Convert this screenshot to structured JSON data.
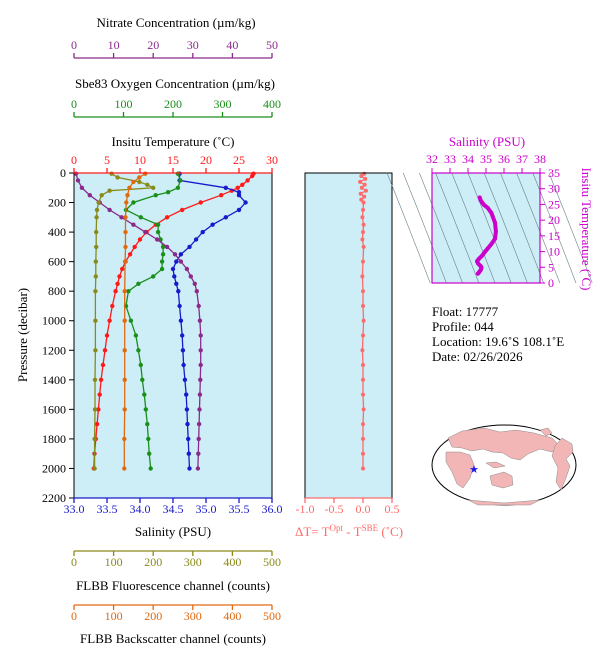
{
  "colors": {
    "nitrate": "#8b2a8b",
    "oxygen": "#1a8f1a",
    "temperature": "#ff1a1a",
    "salinity": "#1a1acc",
    "fluorescence": "#8a8a1a",
    "backscatter": "#e06a10",
    "delta_t": "#ff6a6a",
    "ts_accent": "#cc00cc",
    "ts_trace": "#cc00cc",
    "plot_bg": "#cdeef7",
    "land": "#f2b6b6",
    "ocean": "#ffffff",
    "float_marker": "#1a1aee"
  },
  "info": {
    "float": "Float:  17777",
    "profile": "Profile:  044",
    "location": "Location:  19.6˚S  108.1˚E",
    "date": "Date:  02/26/2026"
  },
  "chart_data": [
    {
      "type": "line",
      "name": "profile-panel",
      "y_axis": {
        "label": "Pressure (decibar)",
        "range": [
          0,
          2200
        ],
        "ticks": [
          0,
          200,
          400,
          600,
          800,
          1000,
          1200,
          1400,
          1600,
          1800,
          2000,
          2200
        ],
        "inverted": true
      },
      "axes": {
        "nitrate": {
          "label": "Nitrate Concentration (µm/kg)",
          "range": [
            0,
            50
          ],
          "ticks": [
            0,
            10,
            20,
            30,
            40,
            50
          ]
        },
        "oxygen": {
          "label": "Sbe83 Oxygen Concentration (µm/kg)",
          "range": [
            0,
            400
          ],
          "ticks": [
            0,
            100,
            200,
            300,
            400
          ]
        },
        "temperature": {
          "label": "Insitu Temperature (˚C)",
          "range": [
            0,
            30
          ],
          "ticks": [
            0,
            5,
            10,
            15,
            20,
            25,
            30
          ]
        },
        "salinity": {
          "label": "Salinity (PSU)",
          "range": [
            33,
            36
          ],
          "ticks": [
            "33.0",
            "33.5",
            "34.0",
            "34.5",
            "35.0",
            "35.5",
            "36.0"
          ]
        },
        "fluorescence": {
          "label": "FLBB Fluorescence channel (counts)",
          "range": [
            0,
            500
          ],
          "ticks": [
            0,
            100,
            200,
            300,
            400,
            500
          ]
        },
        "backscatter": {
          "label": "FLBB Backscatter channel (counts)",
          "range": [
            0,
            500
          ],
          "ticks": [
            0,
            100,
            200,
            300,
            400,
            500
          ]
        }
      },
      "series": [
        {
          "key": "temperature",
          "pressure": [
            5,
            20,
            50,
            80,
            100,
            120,
            150,
            200,
            250,
            300,
            350,
            400,
            450,
            500,
            550,
            600,
            650,
            700,
            750,
            800,
            900,
            1000,
            1100,
            1200,
            1300,
            1400,
            1500,
            1600,
            1700,
            1800,
            1900,
            2000
          ],
          "values": [
            27.2,
            27.0,
            26.3,
            25.5,
            24.8,
            23.9,
            22.3,
            19.2,
            16.4,
            14.1,
            12.4,
            11.0,
            10.0,
            9.2,
            8.5,
            7.8,
            7.3,
            6.9,
            6.6,
            6.3,
            5.8,
            5.4,
            5.0,
            4.7,
            4.4,
            4.1,
            3.9,
            3.7,
            3.5,
            3.3,
            3.1,
            3.0
          ]
        },
        {
          "key": "salinity",
          "pressure": [
            5,
            50,
            100,
            130,
            150,
            200,
            250,
            300,
            350,
            400,
            450,
            500,
            550,
            600,
            650,
            700,
            750,
            800,
            900,
            1000,
            1100,
            1200,
            1300,
            1400,
            1500,
            1600,
            1700,
            1800,
            1900,
            2000
          ],
          "values": [
            34.6,
            34.6,
            35.3,
            35.5,
            35.5,
            35.6,
            35.5,
            35.3,
            35.1,
            34.95,
            34.85,
            34.75,
            34.62,
            34.55,
            34.5,
            34.52,
            34.55,
            34.58,
            34.6,
            34.62,
            34.64,
            34.65,
            34.66,
            34.68,
            34.7,
            34.71,
            34.72,
            34.73,
            34.74,
            34.75
          ]
        },
        {
          "key": "oxygen",
          "pressure": [
            5,
            50,
            100,
            130,
            150,
            200,
            250,
            300,
            350,
            400,
            450,
            500,
            550,
            600,
            650,
            700,
            750,
            800,
            900,
            1000,
            1100,
            1200,
            1300,
            1400,
            1500,
            1600,
            1700,
            1800,
            1900,
            2000
          ],
          "values": [
            210,
            215,
            210,
            190,
            165,
            120,
            105,
            135,
            170,
            170,
            175,
            180,
            180,
            178,
            178,
            160,
            130,
            110,
            105,
            115,
            125,
            130,
            135,
            138,
            142,
            145,
            148,
            150,
            152,
            155
          ]
        },
        {
          "key": "nitrate",
          "pressure": [
            5,
            50,
            100,
            150,
            200,
            250,
            300,
            350,
            400,
            450,
            500,
            550,
            600,
            650,
            700,
            750,
            800,
            900,
            1000,
            1100,
            1200,
            1300,
            1400,
            1500,
            1600,
            1700,
            1800,
            1900,
            2000
          ],
          "values": [
            0.5,
            1.0,
            2.0,
            4.0,
            6.5,
            9.0,
            12.0,
            15.0,
            18.0,
            21.0,
            23.5,
            25.5,
            27.0,
            28.5,
            29.5,
            30.5,
            31.0,
            31.5,
            31.8,
            32.0,
            32.0,
            32.0,
            31.9,
            31.8,
            31.7,
            31.6,
            31.5,
            31.4,
            31.3
          ]
        },
        {
          "key": "fluorescence",
          "pressure": [
            5,
            30,
            60,
            80,
            100,
            120,
            150,
            200,
            250,
            300,
            400,
            500,
            600,
            700,
            800,
            1000,
            1200,
            1400,
            1600,
            1800,
            2000
          ],
          "values": [
            95,
            110,
            165,
            185,
            200,
            90,
            70,
            62,
            58,
            57,
            56,
            56,
            55,
            55,
            54,
            54,
            54,
            53,
            53,
            52,
            52
          ]
        },
        {
          "key": "backscatter",
          "pressure": [
            5,
            30,
            60,
            100,
            150,
            200,
            300,
            400,
            500,
            600,
            800,
            1000,
            1200,
            1400,
            1600,
            1800,
            2000
          ],
          "values": [
            180,
            165,
            150,
            140,
            135,
            132,
            130,
            130,
            130,
            129,
            128,
            128,
            128,
            128,
            128,
            127,
            127
          ]
        }
      ]
    },
    {
      "type": "line",
      "name": "delta-t-panel",
      "x_axis": {
        "label": "ΔT= T^Opt - T^SBE (˚C)",
        "range": [
          -1.0,
          0.5
        ],
        "ticks": [
          "-1.0",
          "-0.5",
          "0.0",
          "0.5"
        ]
      },
      "y_axis": {
        "range": [
          0,
          2200
        ],
        "inverted": true
      },
      "series": [
        {
          "key": "delta_t",
          "pressure": [
            5,
            20,
            40,
            60,
            80,
            100,
            120,
            140,
            160,
            180,
            200,
            250,
            300,
            350,
            400,
            450,
            500,
            600,
            700,
            800,
            900,
            1000,
            1100,
            1200,
            1300,
            1400,
            1500,
            1600,
            1700,
            1800,
            1900,
            2000
          ],
          "values": [
            0.02,
            -0.03,
            0.04,
            -0.05,
            0.03,
            -0.02,
            0.05,
            -0.04,
            0.02,
            -0.03,
            0.01,
            0.0,
            -0.01,
            0.01,
            0.0,
            -0.01,
            0.01,
            0.0,
            -0.01,
            0.0,
            0.0,
            0.01,
            0.0,
            -0.01,
            0.0,
            0.0,
            0.0,
            0.01,
            0.0,
            0.0,
            0.0,
            0.0
          ]
        }
      ]
    },
    {
      "type": "scatter",
      "name": "ts-diagram",
      "x_axis": {
        "label": "Salinity  (PSU)",
        "range": [
          32,
          38
        ],
        "ticks": [
          32,
          33,
          34,
          35,
          36,
          37,
          38
        ]
      },
      "y_axis": {
        "label": "Insitu Temperature (˚C)",
        "range": [
          0,
          35
        ],
        "ticks": [
          0,
          5,
          10,
          15,
          20,
          25,
          30,
          35
        ]
      },
      "series": [
        {
          "key": "ts",
          "salinity": [
            34.55,
            34.6,
            34.65,
            34.7,
            34.72,
            34.74,
            34.75,
            34.7,
            34.62,
            34.55,
            34.5,
            34.55,
            34.62,
            34.75,
            34.85,
            34.95,
            35.1,
            35.3,
            35.5,
            35.55,
            35.5,
            35.3,
            35.1,
            34.9,
            34.8,
            34.7,
            34.65
          ],
          "temperature": [
            3.0,
            3.3,
            3.7,
            4.1,
            4.4,
            4.7,
            5.0,
            5.4,
            5.8,
            6.3,
            6.9,
            7.3,
            7.8,
            8.5,
            9.2,
            10.0,
            11.0,
            12.4,
            14.1,
            16.4,
            19.2,
            22.3,
            23.9,
            24.8,
            25.5,
            26.3,
            27.2
          ]
        }
      ]
    }
  ]
}
